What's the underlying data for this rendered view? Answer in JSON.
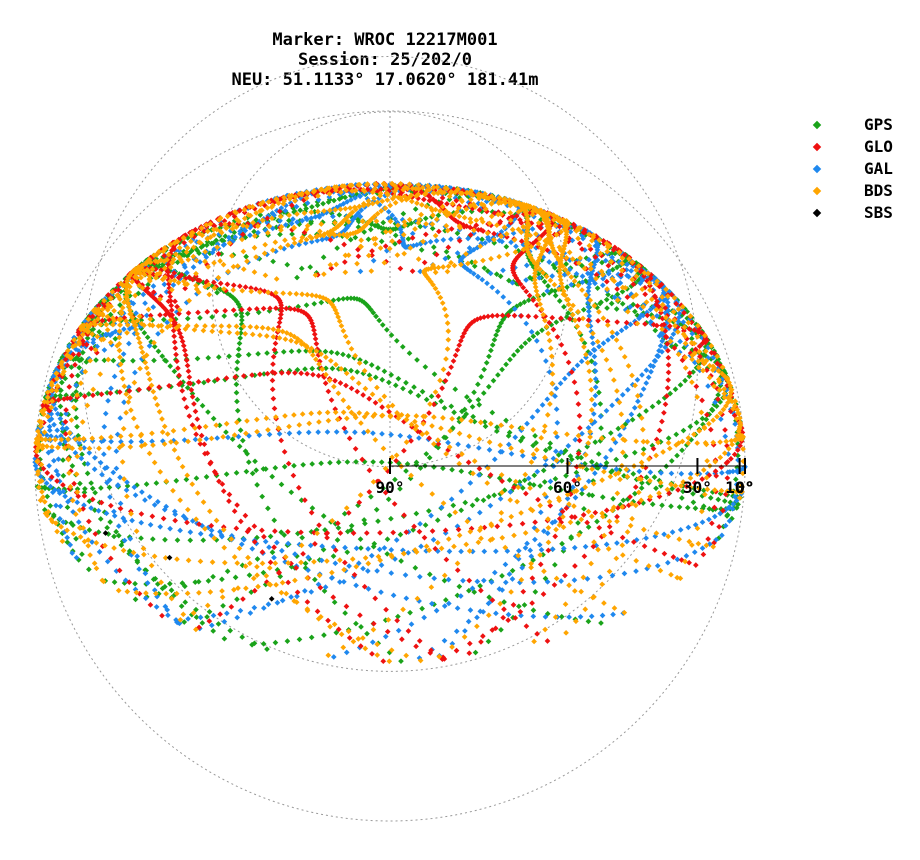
{
  "title": {
    "line1": "Marker: WROC 12217M001",
    "line2": "Session: 25/202/0",
    "line3": "NEU: 51.1133° 17.0620° 181.41m"
  },
  "legend": [
    {
      "label": "GPS",
      "color": "#1aa31a"
    },
    {
      "label": "GLO",
      "color": "#ee1111"
    },
    {
      "label": "GAL",
      "color": "#1f88ee"
    },
    {
      "label": "BDS",
      "color": "#ffa500"
    },
    {
      "label": "SBS",
      "color": "#000000"
    }
  ],
  "chart_data": {
    "type": "scatter",
    "subtype": "polar-skyplot",
    "elevation_ticks": [
      {
        "value": 90,
        "label": "90°"
      },
      {
        "value": 60,
        "label": "60°"
      },
      {
        "value": 30,
        "label": "30°"
      },
      {
        "value": 10,
        "label": "10°"
      },
      {
        "value": 0,
        "label": "0°"
      }
    ],
    "elevation_range": [
      0,
      90
    ],
    "grid": true,
    "legend_position": "top-right",
    "series": [
      {
        "name": "GPS",
        "color": "#1aa31a"
      },
      {
        "name": "GLO",
        "color": "#ee1111"
      },
      {
        "name": "GAL",
        "color": "#1f88ee"
      },
      {
        "name": "BDS",
        "color": "#ffa500"
      },
      {
        "name": "SBS",
        "color": "#000000"
      }
    ]
  }
}
